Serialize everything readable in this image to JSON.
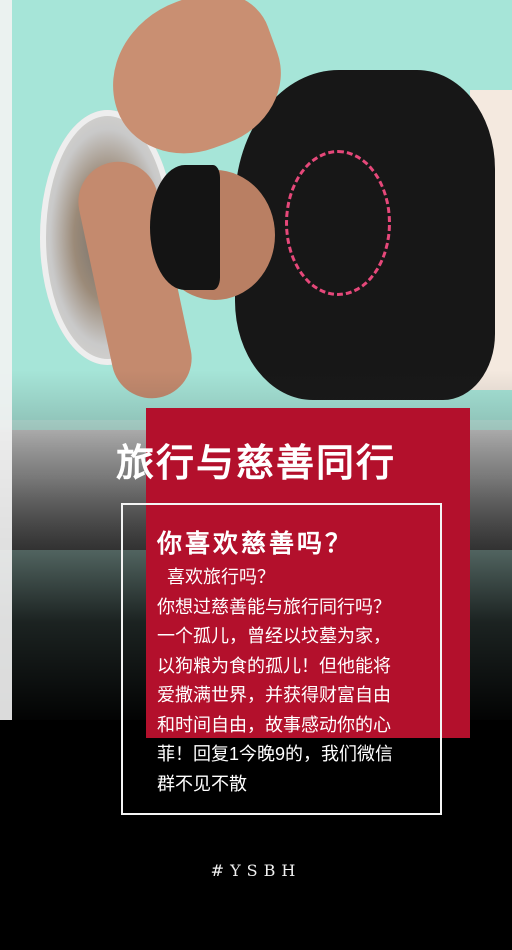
{
  "poster": {
    "headline": "旅行与慈善同行",
    "subhead": "你喜欢慈善吗？",
    "lines": [
      "喜欢旅行吗？",
      "你想过慈善能与旅行同行吗？",
      "一个孤儿，曾经以坟墓为家，",
      "以狗粮为食的孤儿！但他能将",
      "爱撒满世界，并获得财富自由",
      "和时间自由，故事感动你的心",
      "菲！回复1今晚9的，我们微信",
      "群不见不散"
    ],
    "hashtag": "#YSBH"
  },
  "colors": {
    "accent_red": "#b3102c",
    "background": "#000000",
    "text": "#ffffff"
  }
}
